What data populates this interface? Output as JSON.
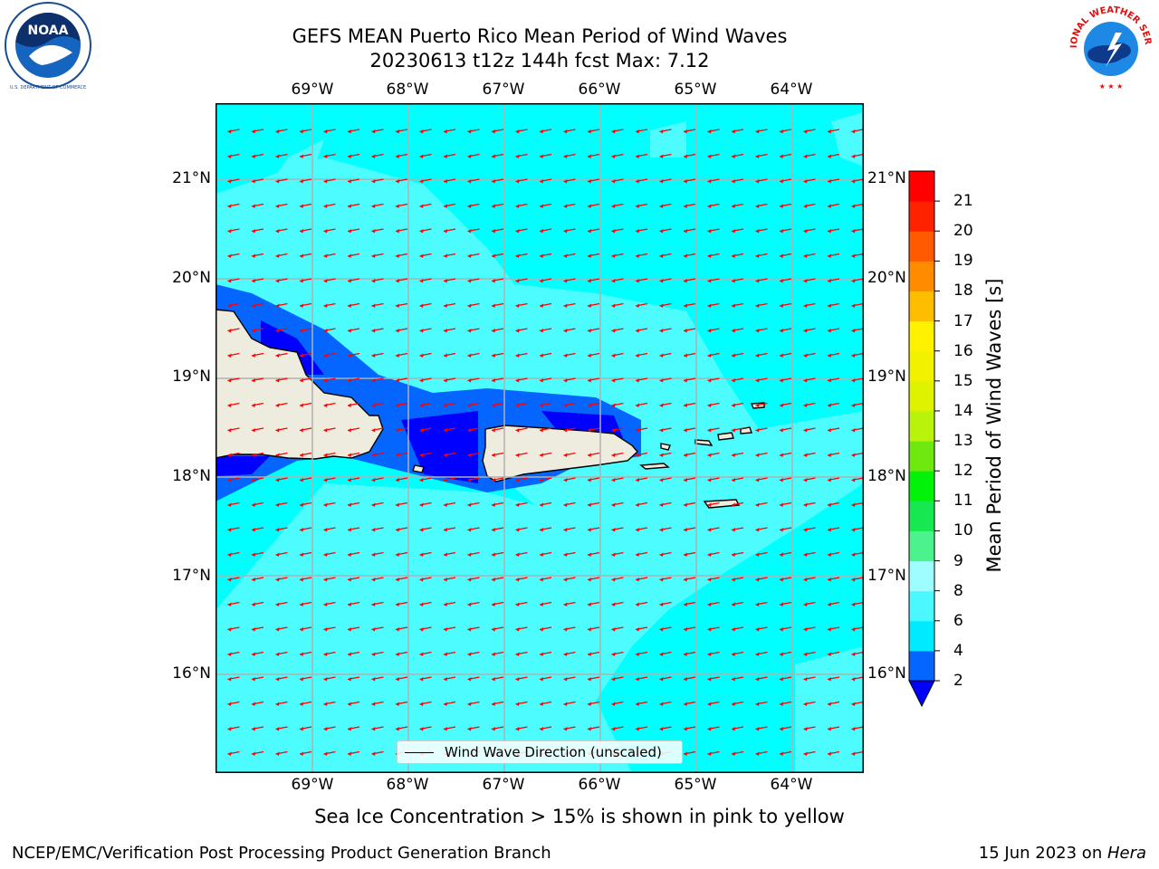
{
  "title": {
    "line1": "GEFS MEAN Puerto Rico Mean Period of Wind Waves",
    "line2": "20230613 t12z 144h fcst   Max: 7.12"
  },
  "logos": {
    "left": "noaa-logo",
    "left_text": "NOAA",
    "left_ring_text": "NATIONAL OCEANIC AND ATMOSPHERIC ADMINISTRATION",
    "left_bottom_text": "U.S. DEPARTMENT OF COMMERCE",
    "right": "nws-logo",
    "right_ring_text": "NATIONAL WEATHER SERVICE"
  },
  "map": {
    "longitude_labels": [
      "69°W",
      "68°W",
      "67°W",
      "66°W",
      "65°W",
      "64°W"
    ],
    "latitude_labels": [
      "21°N",
      "20°N",
      "19°N",
      "18°N",
      "17°N",
      "16°N"
    ],
    "lon_range": [
      -70.0,
      -63.25
    ],
    "lat_range": [
      15.0,
      21.75
    ],
    "gridlines": true,
    "land_color": "#eeecdf",
    "ocean_color": "#00ffff",
    "arrow_color": "#ff0000",
    "arrow_direction": "toward west (easterly wind waves)"
  },
  "colorbar": {
    "label": "Mean Period of Wind Waves [s]",
    "ticks": [
      "2",
      "4",
      "6",
      "8",
      "9",
      "10",
      "11",
      "12",
      "13",
      "14",
      "15",
      "16",
      "17",
      "18",
      "19",
      "20",
      "21"
    ],
    "bins": [
      {
        "from": 2,
        "to": 4,
        "color": "#0565ff"
      },
      {
        "from": 4,
        "to": 6,
        "color": "#00eaff"
      },
      {
        "from": 6,
        "to": 8,
        "color": "#4cf8ff"
      },
      {
        "from": 8,
        "to": 9,
        "color": "#9efdff"
      },
      {
        "from": 9,
        "to": 10,
        "color": "#4cf28c"
      },
      {
        "from": 10,
        "to": 11,
        "color": "#17e851"
      },
      {
        "from": 11,
        "to": 12,
        "color": "#02f20a"
      },
      {
        "from": 12,
        "to": 13,
        "color": "#6ee80e"
      },
      {
        "from": 13,
        "to": 14,
        "color": "#b9f20a"
      },
      {
        "from": 14,
        "to": 15,
        "color": "#dff200"
      },
      {
        "from": 15,
        "to": 16,
        "color": "#f2f200"
      },
      {
        "from": 16,
        "to": 17,
        "color": "#fff200"
      },
      {
        "from": 17,
        "to": 18,
        "color": "#ffbd00"
      },
      {
        "from": 18,
        "to": 19,
        "color": "#ff8c00"
      },
      {
        "from": 19,
        "to": 20,
        "color": "#ff5a00"
      },
      {
        "from": 20,
        "to": 21,
        "color": "#ff2200"
      },
      {
        "from": 21,
        "to": 22,
        "color": "#ff0000"
      }
    ],
    "extend_below_color": "#0000ff"
  },
  "legend": {
    "label": "Wind Wave Direction (unscaled)"
  },
  "notes": {
    "sea_ice": "Sea Ice Concentration > 15% is shown in pink to yellow"
  },
  "footer": {
    "left": "NCEP/EMC/Verification Post Processing Product Generation Branch",
    "date": "15 Jun 2023 on ",
    "host": "Hera"
  }
}
